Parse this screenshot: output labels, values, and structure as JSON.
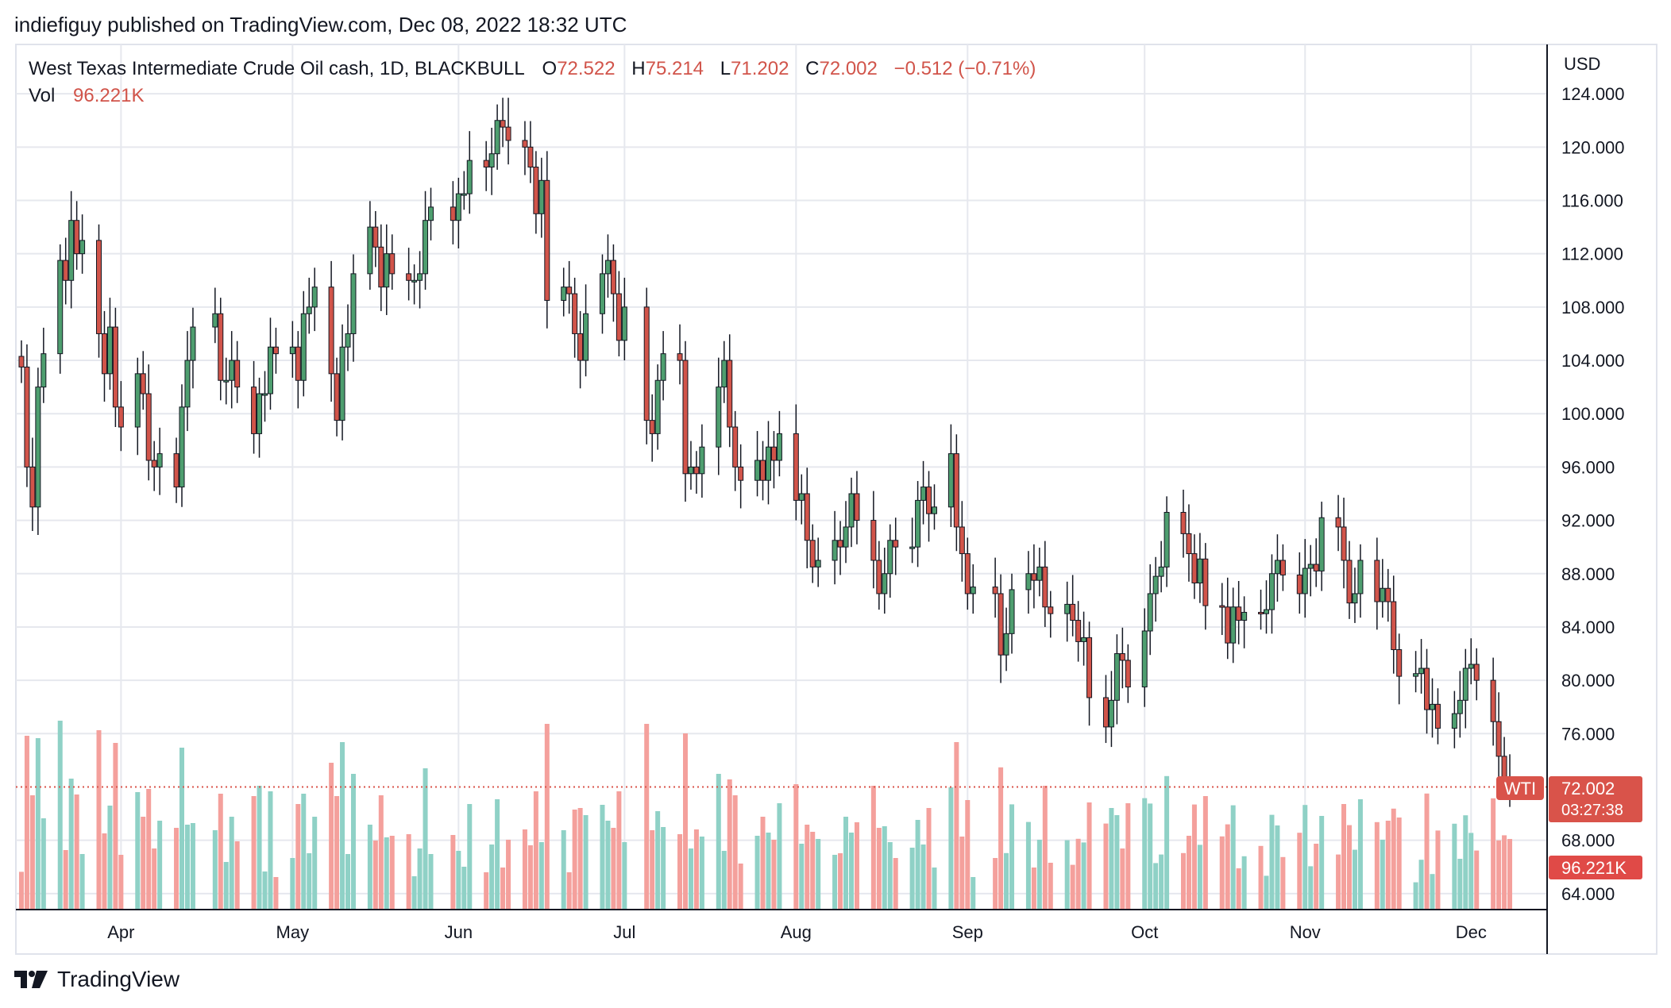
{
  "header": {
    "author": "indiefiguy",
    "published_on": "published on TradingView.com, Dec 08, 2022 18:32 UTC"
  },
  "legend": {
    "symbol": "West Texas Intermediate Crude Oil cash, 1D, BLACKBULL",
    "open_label": "O",
    "open": "72.522",
    "high_label": "H",
    "high": "75.214",
    "low_label": "L",
    "low": "71.202",
    "close_label": "C",
    "close": "72.002",
    "change": "−0.512 (−0.71%)",
    "vol_label": "Vol",
    "vol": "96.221K"
  },
  "badges": {
    "symbol": "WTI",
    "price": "72.002",
    "countdown": "03:27:38",
    "volume": "96.221K"
  },
  "footer": {
    "brand": "TradingView"
  },
  "colors": {
    "up": "#52a37a",
    "up_body": "#4e9e6f",
    "down": "#d1544a",
    "wick": "#131722",
    "vol_up": "#8fd1c6",
    "vol_down": "#f4a09c",
    "grid": "#e6e8ee",
    "axis_text": "#131722",
    "badge": "#d9534a",
    "price_line": "#d9534a"
  },
  "chart_data": {
    "type": "candlestick",
    "title": "West Texas Intermediate Crude Oil cash, 1D, BLACKBULL",
    "currency": "USD",
    "y_ticks": [
      "124.000",
      "120.000",
      "116.000",
      "112.000",
      "108.000",
      "104.000",
      "100.000",
      "96.000",
      "92.000",
      "88.000",
      "84.000",
      "80.000",
      "76.000",
      "68.000",
      "64.000"
    ],
    "ylim": [
      62.8,
      127.7
    ],
    "x_labels": [
      {
        "label": "Apr",
        "date": "2022-04-01"
      },
      {
        "label": "May",
        "date": "2022-05-02"
      },
      {
        "label": "Jun",
        "date": "2022-06-01"
      },
      {
        "label": "Jul",
        "date": "2022-07-01"
      },
      {
        "label": "Aug",
        "date": "2022-08-01"
      },
      {
        "label": "Sep",
        "date": "2022-09-01"
      },
      {
        "label": "Oct",
        "date": "2022-10-03"
      },
      {
        "label": "Nov",
        "date": "2022-11-01"
      },
      {
        "label": "Dec",
        "date": "2022-12-01"
      }
    ],
    "date_range": [
      "2022-03-14",
      "2022-12-08"
    ],
    "close_path": [
      [
        "2022-03-14",
        103.5
      ],
      [
        "2022-03-15",
        96.0
      ],
      [
        "2022-03-16",
        93.0
      ],
      [
        "2022-03-17",
        102.0
      ],
      [
        "2022-03-18",
        104.5
      ],
      [
        "2022-03-21",
        111.5
      ],
      [
        "2022-03-22",
        110.0
      ],
      [
        "2022-03-23",
        114.5
      ],
      [
        "2022-03-24",
        112.0
      ],
      [
        "2022-03-25",
        113.0
      ],
      [
        "2022-03-28",
        106.0
      ],
      [
        "2022-03-29",
        103.0
      ],
      [
        "2022-03-30",
        106.5
      ],
      [
        "2022-03-31",
        100.5
      ],
      [
        "2022-04-01",
        99.0
      ],
      [
        "2022-04-04",
        103.0
      ],
      [
        "2022-04-05",
        101.5
      ],
      [
        "2022-04-06",
        96.5
      ],
      [
        "2022-04-07",
        96.0
      ],
      [
        "2022-04-08",
        97.0
      ],
      [
        "2022-04-11",
        94.5
      ],
      [
        "2022-04-12",
        100.5
      ],
      [
        "2022-04-13",
        104.0
      ],
      [
        "2022-04-14",
        106.5
      ],
      [
        "2022-04-18",
        107.5
      ],
      [
        "2022-04-19",
        102.5
      ],
      [
        "2022-04-20",
        102.5
      ],
      [
        "2022-04-21",
        104.0
      ],
      [
        "2022-04-22",
        102.0
      ],
      [
        "2022-04-25",
        98.5
      ],
      [
        "2022-04-26",
        101.5
      ],
      [
        "2022-04-27",
        101.5
      ],
      [
        "2022-04-28",
        105.0
      ],
      [
        "2022-04-29",
        104.5
      ],
      [
        "2022-05-02",
        105.0
      ],
      [
        "2022-05-03",
        102.5
      ],
      [
        "2022-05-04",
        107.5
      ],
      [
        "2022-05-05",
        108.0
      ],
      [
        "2022-05-06",
        109.5
      ],
      [
        "2022-05-09",
        103.0
      ],
      [
        "2022-05-10",
        99.5
      ],
      [
        "2022-05-11",
        105.0
      ],
      [
        "2022-05-12",
        106.0
      ],
      [
        "2022-05-13",
        110.5
      ],
      [
        "2022-05-16",
        114.0
      ],
      [
        "2022-05-17",
        112.5
      ],
      [
        "2022-05-18",
        109.5
      ],
      [
        "2022-05-19",
        112.0
      ],
      [
        "2022-05-20",
        110.5
      ],
      [
        "2022-05-23",
        110.0
      ],
      [
        "2022-05-24",
        110.0
      ],
      [
        "2022-05-25",
        110.5
      ],
      [
        "2022-05-26",
        114.5
      ],
      [
        "2022-05-27",
        115.5
      ],
      [
        "2022-05-31",
        114.5
      ],
      [
        "2022-06-01",
        116.5
      ],
      [
        "2022-06-02",
        116.5
      ],
      [
        "2022-06-03",
        119.0
      ],
      [
        "2022-06-06",
        118.5
      ],
      [
        "2022-06-07",
        119.5
      ],
      [
        "2022-06-08",
        122.0
      ],
      [
        "2022-06-09",
        121.5
      ],
      [
        "2022-06-10",
        120.5
      ],
      [
        "2022-06-13",
        120.0
      ],
      [
        "2022-06-14",
        118.5
      ],
      [
        "2022-06-15",
        115.0
      ],
      [
        "2022-06-16",
        117.5
      ],
      [
        "2022-06-17",
        108.5
      ],
      [
        "2022-06-20",
        109.5
      ],
      [
        "2022-06-21",
        109.0
      ],
      [
        "2022-06-22",
        106.0
      ],
      [
        "2022-06-23",
        104.0
      ],
      [
        "2022-06-24",
        107.5
      ],
      [
        "2022-06-27",
        110.5
      ],
      [
        "2022-06-28",
        111.5
      ],
      [
        "2022-06-29",
        109.0
      ],
      [
        "2022-06-30",
        105.5
      ],
      [
        "2022-07-01",
        108.0
      ],
      [
        "2022-07-05",
        99.5
      ],
      [
        "2022-07-06",
        98.5
      ],
      [
        "2022-07-07",
        102.5
      ],
      [
        "2022-07-08",
        104.5
      ],
      [
        "2022-07-11",
        104.0
      ],
      [
        "2022-07-12",
        95.5
      ],
      [
        "2022-07-13",
        96.0
      ],
      [
        "2022-07-14",
        95.5
      ],
      [
        "2022-07-15",
        97.5
      ],
      [
        "2022-07-18",
        102.0
      ],
      [
        "2022-07-19",
        104.0
      ],
      [
        "2022-07-20",
        99.0
      ],
      [
        "2022-07-21",
        96.0
      ],
      [
        "2022-07-22",
        95.0
      ],
      [
        "2022-07-25",
        96.5
      ],
      [
        "2022-07-26",
        95.0
      ],
      [
        "2022-07-27",
        97.5
      ],
      [
        "2022-07-28",
        96.5
      ],
      [
        "2022-07-29",
        98.5
      ],
      [
        "2022-08-01",
        93.5
      ],
      [
        "2022-08-02",
        94.0
      ],
      [
        "2022-08-03",
        90.5
      ],
      [
        "2022-08-04",
        88.5
      ],
      [
        "2022-08-05",
        89.0
      ],
      [
        "2022-08-08",
        90.5
      ],
      [
        "2022-08-09",
        90.0
      ],
      [
        "2022-08-10",
        91.5
      ],
      [
        "2022-08-11",
        94.0
      ],
      [
        "2022-08-12",
        92.0
      ],
      [
        "2022-08-15",
        89.0
      ],
      [
        "2022-08-16",
        86.5
      ],
      [
        "2022-08-17",
        88.0
      ],
      [
        "2022-08-18",
        90.5
      ],
      [
        "2022-08-19",
        90.0
      ],
      [
        "2022-08-22",
        90.0
      ],
      [
        "2022-08-23",
        93.5
      ],
      [
        "2022-08-24",
        94.5
      ],
      [
        "2022-08-25",
        92.5
      ],
      [
        "2022-08-26",
        93.0
      ],
      [
        "2022-08-29",
        97.0
      ],
      [
        "2022-08-30",
        91.5
      ],
      [
        "2022-08-31",
        89.5
      ],
      [
        "2022-09-01",
        86.5
      ],
      [
        "2022-09-02",
        87.0
      ],
      [
        "2022-09-06",
        86.5
      ],
      [
        "2022-09-07",
        81.9
      ],
      [
        "2022-09-08",
        83.5
      ],
      [
        "2022-09-09",
        86.8
      ],
      [
        "2022-09-12",
        88.0
      ],
      [
        "2022-09-13",
        87.5
      ],
      [
        "2022-09-14",
        88.5
      ],
      [
        "2022-09-15",
        85.5
      ],
      [
        "2022-09-16",
        85.0
      ],
      [
        "2022-09-19",
        85.7
      ],
      [
        "2022-09-20",
        84.5
      ],
      [
        "2022-09-21",
        82.9
      ],
      [
        "2022-09-22",
        83.2
      ],
      [
        "2022-09-23",
        78.7
      ],
      [
        "2022-09-26",
        76.5
      ],
      [
        "2022-09-27",
        78.5
      ],
      [
        "2022-09-28",
        82.0
      ],
      [
        "2022-09-29",
        81.5
      ],
      [
        "2022-09-30",
        79.5
      ],
      [
        "2022-10-03",
        83.7
      ],
      [
        "2022-10-04",
        86.5
      ],
      [
        "2022-10-05",
        87.8
      ],
      [
        "2022-10-06",
        88.5
      ],
      [
        "2022-10-07",
        92.6
      ],
      [
        "2022-10-10",
        91.0
      ],
      [
        "2022-10-11",
        89.5
      ],
      [
        "2022-10-12",
        87.3
      ],
      [
        "2022-10-13",
        89.1
      ],
      [
        "2022-10-14",
        85.6
      ],
      [
        "2022-10-17",
        85.5
      ],
      [
        "2022-10-18",
        82.8
      ],
      [
        "2022-10-19",
        85.5
      ],
      [
        "2022-10-20",
        84.5
      ],
      [
        "2022-10-21",
        85.1
      ],
      [
        "2022-10-24",
        85.0
      ],
      [
        "2022-10-25",
        85.3
      ],
      [
        "2022-10-26",
        88.0
      ],
      [
        "2022-10-27",
        89.0
      ],
      [
        "2022-10-28",
        87.9
      ],
      [
        "2022-10-31",
        86.5
      ],
      [
        "2022-11-01",
        88.4
      ],
      [
        "2022-11-02",
        88.7
      ],
      [
        "2022-11-03",
        88.2
      ],
      [
        "2022-11-04",
        92.2
      ],
      [
        "2022-11-07",
        91.5
      ],
      [
        "2022-11-08",
        89.0
      ],
      [
        "2022-11-09",
        85.8
      ],
      [
        "2022-11-10",
        86.5
      ],
      [
        "2022-11-11",
        89.0
      ],
      [
        "2022-11-14",
        85.9
      ],
      [
        "2022-11-15",
        86.9
      ],
      [
        "2022-11-16",
        85.9
      ],
      [
        "2022-11-17",
        82.3
      ],
      [
        "2022-11-18",
        80.3
      ],
      [
        "2022-11-21",
        80.5
      ],
      [
        "2022-11-22",
        80.9
      ],
      [
        "2022-11-23",
        77.8
      ],
      [
        "2022-11-24",
        78.2
      ],
      [
        "2022-11-25",
        76.4
      ],
      [
        "2022-11-28",
        77.5
      ],
      [
        "2022-11-29",
        78.5
      ],
      [
        "2022-11-30",
        80.9
      ],
      [
        "2022-12-01",
        81.2
      ],
      [
        "2022-12-02",
        80.0
      ],
      [
        "2022-12-05",
        76.9
      ],
      [
        "2022-12-06",
        74.3
      ],
      [
        "2022-12-07",
        72.5
      ],
      [
        "2022-12-08",
        72.002
      ]
    ]
  }
}
